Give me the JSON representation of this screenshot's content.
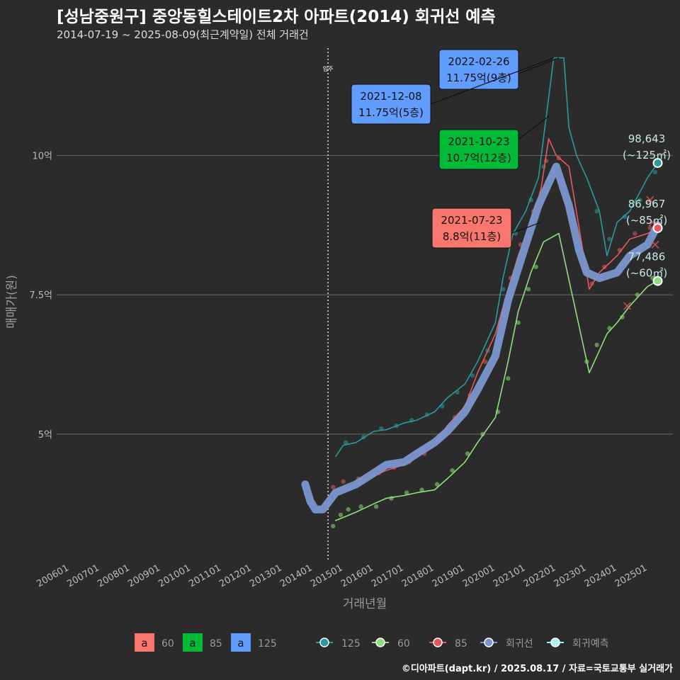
{
  "title": "[성남중원구] 중앙동힐스테이트2차 아파트(2014) 회귀선 예측",
  "subtitle": "2014-07-19 ~ 2025-08-09(최근계약일) 전체 거래건",
  "caption": "©디아파트(dapt.kr) / 2025.08.17 / 자료=국토교통부 실거래가",
  "colors": {
    "bg": "#2b2b2b",
    "s60": "#8ee07a",
    "s85": "#e8585a",
    "s125": "#2a9a9c",
    "regression": "#7b96cf",
    "forecast": "#a8f0f0",
    "box60": "#f8766d",
    "box85": "#00ba38",
    "box125": "#619cff"
  },
  "chart_data": {
    "type": "line",
    "title": "[성남중원구] 중앙동힐스테이트2차 아파트(2014) 회귀선 예측",
    "xlabel": "거래년월",
    "ylabel": "매매가(원)",
    "x_ticks": [
      "200601",
      "200701",
      "200801",
      "200901",
      "201001",
      "201101",
      "201201",
      "201301",
      "201401",
      "201501",
      "201601",
      "201701",
      "201801",
      "201901",
      "202001",
      "202101",
      "202201",
      "202301",
      "202401",
      "202501"
    ],
    "y_ticks": [
      {
        "value": 50000,
        "label": "5억"
      },
      {
        "value": 75000,
        "label": "7.5억"
      },
      {
        "value": 100000,
        "label": "10억"
      }
    ],
    "xlim": [
      "2005-08",
      "2025-11"
    ],
    "ylim": [
      27500,
      120000
    ],
    "move_in": {
      "date": "2014-07",
      "label": "입주"
    },
    "series": [
      {
        "name": "125",
        "color_key": "s125",
        "points": [
          [
            "2014-10",
            46000
          ],
          [
            "2015-01",
            48000
          ],
          [
            "2015-06",
            48500
          ],
          [
            "2016-01",
            50500
          ],
          [
            "2016-06",
            50800
          ],
          [
            "2017-01",
            52000
          ],
          [
            "2017-06",
            52500
          ],
          [
            "2018-01",
            54000
          ],
          [
            "2018-06",
            56500
          ],
          [
            "2019-01",
            59000
          ],
          [
            "2019-06",
            63000
          ],
          [
            "2020-01",
            70000
          ],
          [
            "2020-04",
            78000
          ],
          [
            "2020-08",
            86000
          ],
          [
            "2021-01",
            90000
          ],
          [
            "2021-06",
            96000
          ],
          [
            "2021-12",
            117500
          ],
          [
            "2022-02",
            117500
          ],
          [
            "2022-04",
            117500
          ],
          [
            "2022-06",
            105000
          ],
          [
            "2022-09",
            100000
          ],
          [
            "2023-01",
            96000
          ],
          [
            "2023-06",
            90000
          ],
          [
            "2023-09",
            82000
          ],
          [
            "2024-01",
            88000
          ],
          [
            "2024-06",
            90000
          ],
          [
            "2025-01",
            96000
          ],
          [
            "2025-05",
            98643
          ]
        ]
      },
      {
        "name": "60",
        "color_key": "s60",
        "points": [
          [
            "2014-10",
            34500
          ],
          [
            "2015-06",
            36000
          ],
          [
            "2016-01",
            37500
          ],
          [
            "2016-06",
            38500
          ],
          [
            "2017-01",
            39000
          ],
          [
            "2017-06",
            39500
          ],
          [
            "2018-01",
            40000
          ],
          [
            "2018-06",
            42000
          ],
          [
            "2019-01",
            45000
          ],
          [
            "2019-06",
            48500
          ],
          [
            "2020-01",
            53000
          ],
          [
            "2020-06",
            63000
          ],
          [
            "2020-10",
            72000
          ],
          [
            "2021-03",
            79000
          ],
          [
            "2021-08",
            84500
          ],
          [
            "2022-02",
            86000
          ],
          [
            "2023-02",
            61000
          ],
          [
            "2023-06",
            65000
          ],
          [
            "2023-09",
            68000
          ],
          [
            "2024-01",
            70000
          ],
          [
            "2024-06",
            73000
          ],
          [
            "2025-01",
            76500
          ],
          [
            "2025-05",
            77486
          ]
        ]
      },
      {
        "name": "85",
        "color_key": "s85",
        "points": [
          [
            "2014-10",
            40000
          ],
          [
            "2015-06",
            41000
          ],
          [
            "2016-01",
            42500
          ],
          [
            "2016-06",
            43500
          ],
          [
            "2017-01",
            44500
          ],
          [
            "2017-06",
            46000
          ],
          [
            "2018-01",
            48000
          ],
          [
            "2018-06",
            51500
          ],
          [
            "2019-01",
            55000
          ],
          [
            "2019-06",
            61000
          ],
          [
            "2020-01",
            68000
          ],
          [
            "2020-06",
            76000
          ],
          [
            "2020-10",
            82000
          ],
          [
            "2021-03",
            88000
          ],
          [
            "2021-07",
            94000
          ],
          [
            "2021-10",
            103000
          ],
          [
            "2022-01",
            100000
          ],
          [
            "2022-06",
            98000
          ],
          [
            "2023-02",
            76000
          ],
          [
            "2023-06",
            79000
          ],
          [
            "2024-01",
            82000
          ],
          [
            "2024-06",
            85000
          ],
          [
            "2025-01",
            86000
          ],
          [
            "2025-05",
            86967
          ]
        ]
      },
      {
        "name": "회귀선",
        "color_key": "regression",
        "points": [
          [
            "2013-10",
            41000
          ],
          [
            "2013-12",
            38000
          ],
          [
            "2014-02",
            36500
          ],
          [
            "2014-05",
            36500
          ],
          [
            "2014-10",
            39500
          ],
          [
            "2015-06",
            41000
          ],
          [
            "2016-01",
            43000
          ],
          [
            "2016-06",
            44500
          ],
          [
            "2017-01",
            45000
          ],
          [
            "2017-06",
            46500
          ],
          [
            "2018-01",
            48500
          ],
          [
            "2018-06",
            50500
          ],
          [
            "2019-01",
            54000
          ],
          [
            "2019-06",
            58000
          ],
          [
            "2020-01",
            64000
          ],
          [
            "2020-06",
            74000
          ],
          [
            "2021-01",
            84000
          ],
          [
            "2021-06",
            91000
          ],
          [
            "2022-01",
            98000
          ],
          [
            "2022-06",
            91000
          ],
          [
            "2022-10",
            83000
          ],
          [
            "2023-01",
            79000
          ],
          [
            "2023-06",
            78000
          ],
          [
            "2024-01",
            79000
          ],
          [
            "2024-06",
            82000
          ],
          [
            "2025-01",
            84000
          ],
          [
            "2025-05",
            87500
          ]
        ]
      }
    ],
    "scatter_60": [
      [
        "2014-09",
        33500
      ],
      [
        "2014-12",
        35500
      ],
      [
        "2015-03",
        36500
      ],
      [
        "2015-08",
        37000
      ],
      [
        "2016-02",
        37000
      ],
      [
        "2016-08",
        38500
      ],
      [
        "2017-02",
        39500
      ],
      [
        "2017-08",
        40000
      ],
      [
        "2018-02",
        41000
      ],
      [
        "2018-08",
        43500
      ],
      [
        "2019-02",
        46500
      ],
      [
        "2019-08",
        50000
      ],
      [
        "2020-02",
        54000
      ],
      [
        "2020-06",
        60000
      ],
      [
        "2020-10",
        70000
      ],
      [
        "2021-02",
        76000
      ],
      [
        "2021-05",
        80000
      ],
      [
        "2023-01",
        63000
      ],
      [
        "2023-05",
        66000
      ],
      [
        "2023-10",
        69000
      ],
      [
        "2024-03",
        71000
      ],
      [
        "2024-09",
        75000
      ],
      [
        "2025-03",
        78000
      ]
    ],
    "scatter_85": [
      [
        "2014-09",
        40500
      ],
      [
        "2015-01",
        41500
      ],
      [
        "2015-07",
        42000
      ],
      [
        "2016-03",
        43000
      ],
      [
        "2016-09",
        44000
      ],
      [
        "2017-03",
        45000
      ],
      [
        "2017-09",
        46500
      ],
      [
        "2018-03",
        49000
      ],
      [
        "2018-09",
        53000
      ],
      [
        "2019-03",
        57000
      ],
      [
        "2019-09",
        63000
      ],
      [
        "2020-03",
        70000
      ],
      [
        "2020-07",
        78000
      ],
      [
        "2020-11",
        84000
      ],
      [
        "2021-04",
        90000
      ],
      [
        "2021-09",
        99000
      ],
      [
        "2022-02",
        99500
      ],
      [
        "2023-03",
        77000
      ],
      [
        "2023-08",
        80000
      ],
      [
        "2024-02",
        83000
      ],
      [
        "2024-08",
        86000
      ],
      [
        "2025-02",
        87000
      ]
    ],
    "scatter_125": [
      [
        "2015-02",
        48500
      ],
      [
        "2015-09",
        49500
      ],
      [
        "2016-04",
        51000
      ],
      [
        "2016-10",
        51500
      ],
      [
        "2017-04",
        52500
      ],
      [
        "2017-10",
        53500
      ],
      [
        "2018-04",
        55000
      ],
      [
        "2018-10",
        57500
      ],
      [
        "2019-04",
        60500
      ],
      [
        "2019-10",
        65000
      ],
      [
        "2020-04",
        76000
      ],
      [
        "2020-09",
        86000
      ],
      [
        "2021-03",
        92000
      ],
      [
        "2021-08",
        98000
      ],
      [
        "2023-05",
        90000
      ],
      [
        "2023-10",
        85000
      ],
      [
        "2024-04",
        89000
      ],
      [
        "2024-10",
        92000
      ],
      [
        "2025-04",
        97000
      ]
    ],
    "forecast_crosses": [
      [
        "2024-05",
        73000
      ],
      [
        "2025-02",
        92000
      ],
      [
        "2025-03",
        88000
      ],
      [
        "2025-04",
        84000
      ]
    ],
    "end_points": [
      {
        "series": "125",
        "date": "2025-05",
        "value": 98643,
        "line1": "98,643",
        "line2": "(~125㎡)"
      },
      {
        "series": "85",
        "date": "2025-05",
        "value": 86967,
        "line1": "86,967",
        "line2": "(~85㎡)"
      },
      {
        "series": "60",
        "date": "2025-05",
        "value": 77486,
        "line1": "77,486",
        "line2": "(~60㎡)"
      }
    ],
    "annotations": [
      {
        "box": "box125",
        "line1": "2022-02-26",
        "line2": "11.75억(9층)",
        "date": "2022-02",
        "value": 117500
      },
      {
        "box": "box125",
        "line1": "2021-12-08",
        "line2": "11.75억(5층)",
        "date": "2021-12",
        "value": 117500
      },
      {
        "box": "box85",
        "line1": "2021-10-23",
        "line2": "10.7억(12층)",
        "date": "2021-10",
        "value": 107000
      },
      {
        "box": "box60",
        "line1": "2021-07-23",
        "line2": "8.8억(11층)",
        "date": "2021-07",
        "value": 88000
      }
    ],
    "legend": {
      "placement": "bottom",
      "boxes": [
        {
          "key": "box60",
          "label": "60"
        },
        {
          "key": "box85",
          "label": "85"
        },
        {
          "key": "box125",
          "label": "125"
        }
      ],
      "box_glyph": "a",
      "lines": [
        {
          "key": "s125",
          "label": "125"
        },
        {
          "key": "s60",
          "label": "60"
        },
        {
          "key": "s85",
          "label": "85"
        },
        {
          "key": "regression",
          "label": "회귀선"
        },
        {
          "key": "forecast",
          "label": "회귀예측"
        }
      ]
    }
  }
}
